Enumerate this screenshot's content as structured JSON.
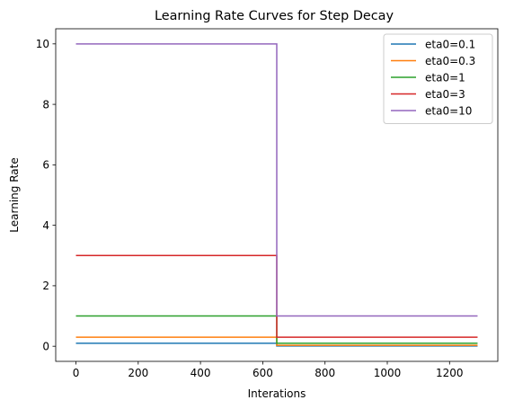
{
  "chart_data": {
    "type": "line",
    "title": "Learning Rate Curves for Step Decay",
    "xlabel": "Interations",
    "ylabel": "Learning Rate",
    "xlim": [
      -65,
      1355
    ],
    "ylim": [
      -0.5,
      10.5
    ],
    "xticks": [
      0,
      200,
      400,
      600,
      800,
      1000,
      1200
    ],
    "yticks": [
      0,
      2,
      4,
      6,
      8,
      10
    ],
    "grid": false,
    "legend_position": "top-right",
    "series": [
      {
        "name": "eta0=0.1",
        "color": "#1f77b4",
        "x": [
          0,
          645,
          645,
          1290
        ],
        "y": [
          0.1,
          0.1,
          0.01,
          0.01
        ]
      },
      {
        "name": "eta0=0.3",
        "color": "#ff7f0e",
        "x": [
          0,
          645,
          645,
          1290
        ],
        "y": [
          0.3,
          0.3,
          0.03,
          0.03
        ]
      },
      {
        "name": "eta0=1",
        "color": "#2ca02c",
        "x": [
          0,
          645,
          645,
          1290
        ],
        "y": [
          1,
          1,
          0.1,
          0.1
        ]
      },
      {
        "name": "eta0=3",
        "color": "#d62728",
        "x": [
          0,
          645,
          645,
          1290
        ],
        "y": [
          3,
          3,
          0.3,
          0.3
        ]
      },
      {
        "name": "eta0=10",
        "color": "#9467bd",
        "x": [
          0,
          645,
          645,
          1290
        ],
        "y": [
          10,
          10,
          1,
          1
        ]
      }
    ]
  }
}
